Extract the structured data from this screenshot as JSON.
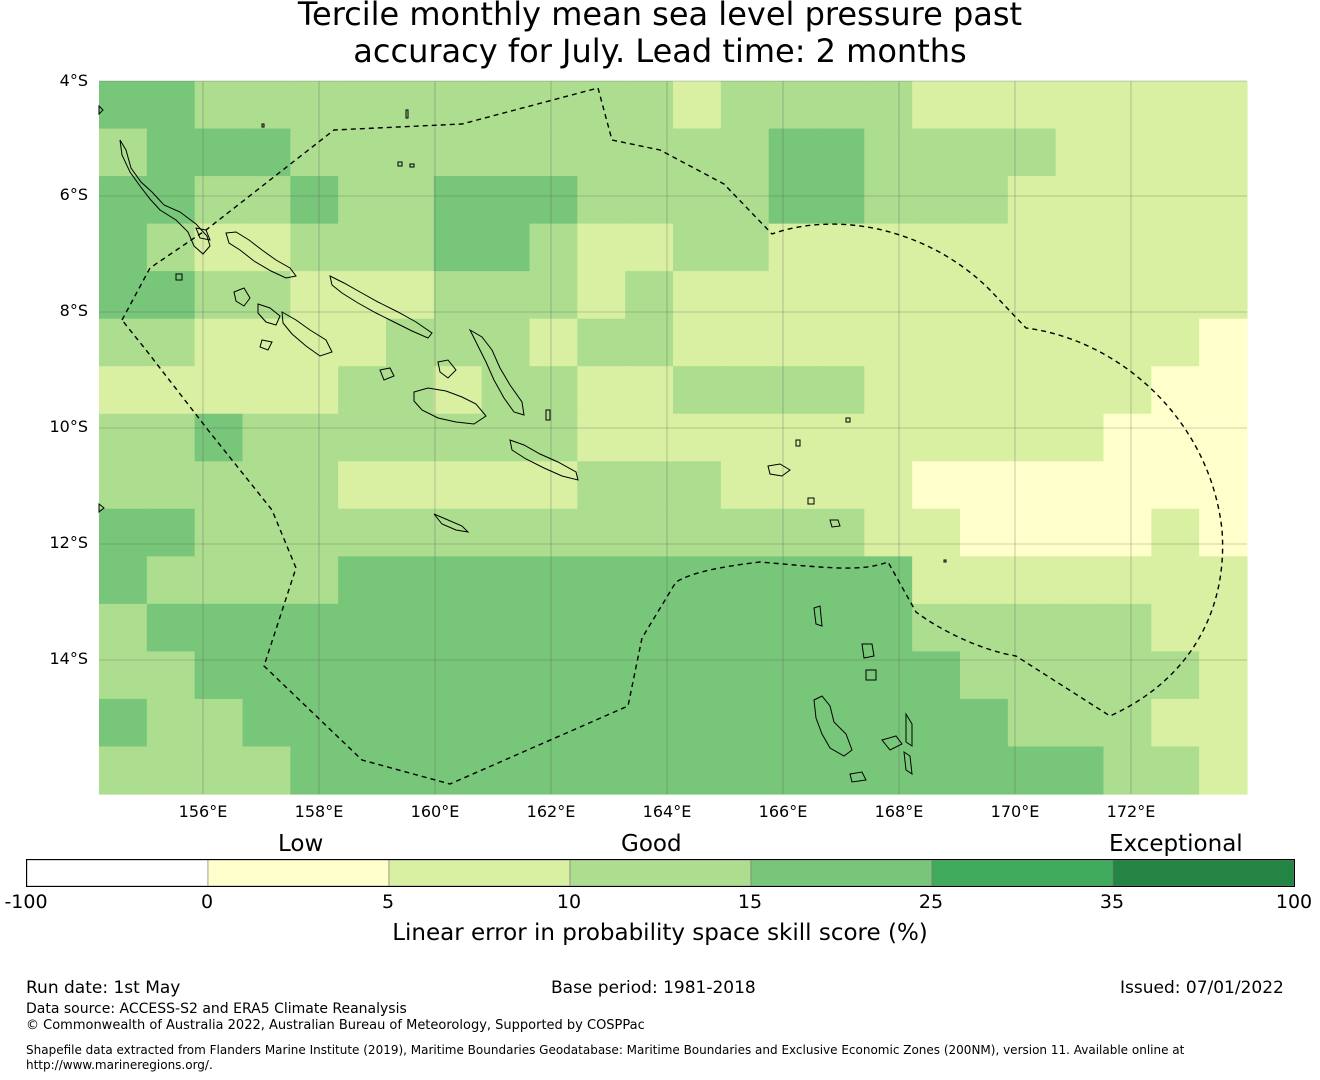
{
  "title_line1": "Tercile monthly mean sea level pressure past",
  "title_line2": "accuracy for July. Lead time: 2 months",
  "map": {
    "lat_labels": [
      "4°S",
      "6°S",
      "8°S",
      "10°S",
      "12°S",
      "14°S"
    ],
    "lon_labels": [
      "156°E",
      "158°E",
      "160°E",
      "162°E",
      "164°E",
      "166°E",
      "168°E",
      "170°E",
      "172°E"
    ],
    "lat_range": [
      -16.4,
      -4.0
    ],
    "lon_range": [
      154.2,
      174.0
    ]
  },
  "colorbar": {
    "category_labels": [
      "Low",
      "Good",
      "Exceptional"
    ],
    "ticks": [
      "-100",
      "0",
      "5",
      "10",
      "15",
      "25",
      "35",
      "100"
    ],
    "colors": [
      "#ffffff",
      "#ffffcc",
      "#d9f0a3",
      "#addd8e",
      "#78c679",
      "#41ab5d",
      "#238443"
    ],
    "title": "Linear error in probability space skill score (%)"
  },
  "footer": {
    "run_date": "Run date: 1st May",
    "base_period": "Base period: 1981-2018",
    "issued": "Issued: 07/01/2022",
    "data_source": "Data source: ACCESS-S2 and ERA5 Climate Reanalysis",
    "copyright": "© Commonwealth of Australia 2022, Australian Bureau of Meteorology, Supported by COSPPac",
    "shapefile_line1": "Shapefile data extracted from Flanders Marine Institute (2019), Maritime Boundaries Geodatabase: Maritime Boundaries and Exclusive Economic Zones (200NM), version 11. Available online at",
    "shapefile_line2": "http://www.marineregions.org/."
  }
}
